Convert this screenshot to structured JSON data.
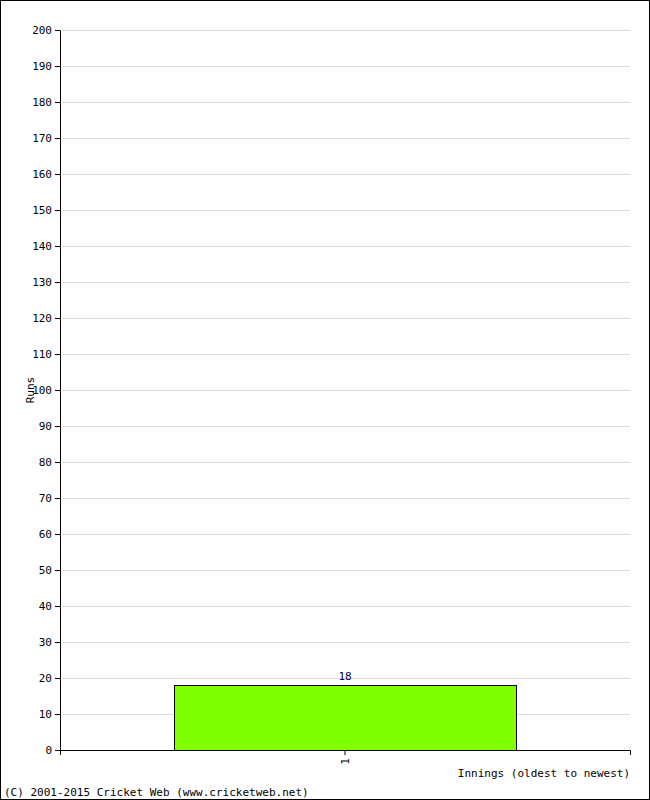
{
  "chart_data": {
    "type": "bar",
    "x_label": "Innings (oldest to newest)",
    "y_label": "Runs",
    "categories": [
      "1"
    ],
    "values": [
      18
    ],
    "color": "#80ff00",
    "ylim": [
      0,
      200
    ],
    "yticks": [
      0,
      10,
      20,
      30,
      40,
      50,
      60,
      70,
      80,
      90,
      100,
      110,
      120,
      130,
      140,
      150,
      160,
      170,
      180,
      190,
      200
    ],
    "grid": true,
    "data_labels": true,
    "annotations": [
      "(C) 2001-2015 Cricket Web (www.cricketweb.net)"
    ]
  }
}
